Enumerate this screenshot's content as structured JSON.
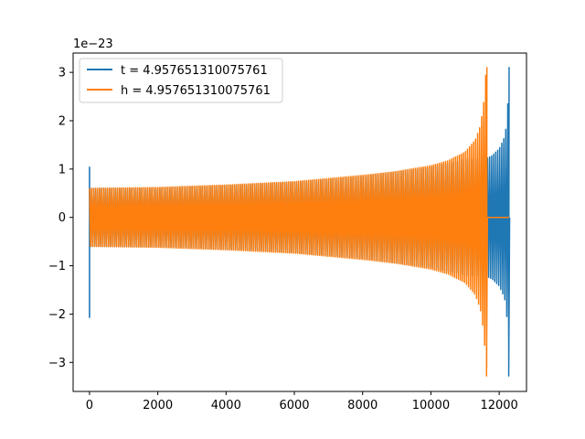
{
  "chart_data": {
    "type": "line",
    "title": "",
    "xlabel": "",
    "ylabel": "",
    "offset_text": "1e−23",
    "xlim": [
      -480,
      12800
    ],
    "ylim": [
      -3.6,
      3.4
    ],
    "xticks": [
      0,
      2000,
      4000,
      6000,
      8000,
      10000,
      12000
    ],
    "xtick_labels": [
      "0",
      "2000",
      "4000",
      "6000",
      "8000",
      "10000",
      "12000"
    ],
    "yticks": [
      -3,
      -2,
      -1,
      0,
      1,
      2,
      3
    ],
    "ytick_labels": [
      "−3",
      "−2",
      "−1",
      "0",
      "1",
      "2",
      "3"
    ],
    "grid": false,
    "legend_position": "top-left",
    "series": [
      {
        "name": "t = 4.957651310075761",
        "color": "#1f77b4",
        "kind": "oscillating envelope",
        "x_start": 0,
        "x_end": 12290,
        "initial_spike_min": -2.08,
        "initial_spike_max": 1.05,
        "envelope": [
          [
            0,
            0.6
          ],
          [
            2000,
            0.61
          ],
          [
            4000,
            0.66
          ],
          [
            6000,
            0.73
          ],
          [
            8000,
            0.85
          ],
          [
            10000,
            1.04
          ],
          [
            11000,
            1.2
          ],
          [
            11640,
            1.22
          ],
          [
            11800,
            1.28
          ],
          [
            12000,
            1.42
          ],
          [
            12150,
            1.65
          ],
          [
            12200,
            1.85
          ],
          [
            12250,
            2.3
          ],
          [
            12280,
            3.1
          ]
        ],
        "min_value": -3.28,
        "max_value": 3.1
      },
      {
        "name": "h = 4.957651310075761",
        "color": "#ff7f0e",
        "kind": "oscillating envelope",
        "x_start": 0,
        "x_end": 11640,
        "envelope": [
          [
            0,
            0.6
          ],
          [
            2000,
            0.62
          ],
          [
            4000,
            0.67
          ],
          [
            6000,
            0.74
          ],
          [
            8000,
            0.87
          ],
          [
            9000,
            0.95
          ],
          [
            10000,
            1.07
          ],
          [
            10500,
            1.17
          ],
          [
            11000,
            1.35
          ],
          [
            11300,
            1.6
          ],
          [
            11450,
            1.9
          ],
          [
            11550,
            2.4
          ],
          [
            11620,
            3.1
          ]
        ],
        "min_value": -3.28,
        "max_value": 3.1,
        "flat_tail_x": [
          11640,
          12290
        ],
        "flat_tail_y": 0
      }
    ]
  }
}
